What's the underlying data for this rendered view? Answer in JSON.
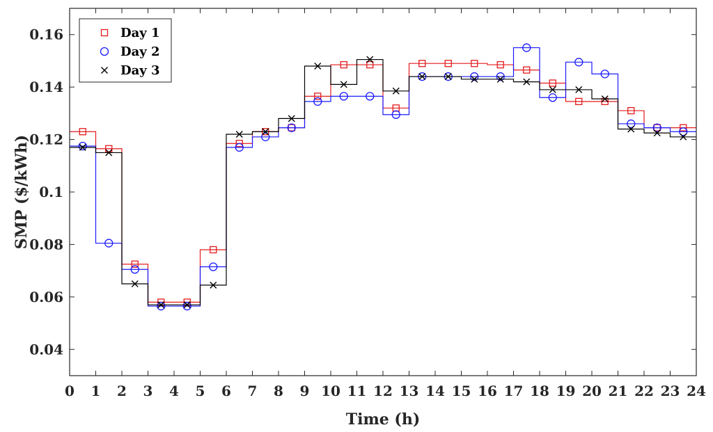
{
  "chart_data": {
    "type": "line",
    "step": true,
    "xlabel": "Time (h)",
    "ylabel": "SMP ($/kWh)",
    "xlim": [
      0,
      24
    ],
    "ylim": [
      0.03,
      0.17
    ],
    "xticks": [
      0,
      1,
      2,
      3,
      4,
      5,
      6,
      7,
      8,
      9,
      10,
      11,
      12,
      13,
      14,
      15,
      16,
      17,
      18,
      19,
      20,
      21,
      22,
      23,
      24
    ],
    "xtick_labels": [
      "0",
      "1",
      "2",
      "3",
      "4",
      "5",
      "6",
      "7",
      "8",
      "9",
      "10",
      "11",
      "12",
      "13",
      "14",
      "15",
      "16",
      "17",
      "18",
      "19",
      "20",
      "21",
      "22",
      "23",
      "24"
    ],
    "yticks": [
      0.04,
      0.06,
      0.08,
      0.1,
      0.12,
      0.14,
      0.16
    ],
    "ytick_labels": [
      "0.04",
      "0.06",
      "0.08",
      "0.1",
      "0.12",
      "0.14",
      "0.16"
    ],
    "grid": false,
    "legend_position": "top-left",
    "series": [
      {
        "name": "Day 1",
        "color": "#e41a1c",
        "marker": "square",
        "values": [
          0.123,
          0.1165,
          0.0725,
          0.058,
          0.058,
          0.078,
          0.1185,
          0.123,
          0.1245,
          0.1365,
          0.1485,
          0.1485,
          0.132,
          0.149,
          0.149,
          0.149,
          0.1485,
          0.1465,
          0.1415,
          0.1345,
          0.1345,
          0.131,
          0.1245,
          0.1245
        ]
      },
      {
        "name": "Day 2",
        "color": "#1a1aff",
        "marker": "circle",
        "values": [
          0.1175,
          0.0805,
          0.0705,
          0.0565,
          0.0565,
          0.0715,
          0.117,
          0.121,
          0.1245,
          0.1345,
          0.1365,
          0.1365,
          0.1295,
          0.144,
          0.144,
          0.144,
          0.144,
          0.155,
          0.136,
          0.1495,
          0.145,
          0.126,
          0.1245,
          0.123
        ]
      },
      {
        "name": "Day 3",
        "color": "#000000",
        "marker": "x",
        "values": [
          0.117,
          0.115,
          0.065,
          0.057,
          0.057,
          0.0645,
          0.122,
          0.123,
          0.128,
          0.148,
          0.141,
          0.1505,
          0.1385,
          0.144,
          0.144,
          0.143,
          0.143,
          0.142,
          0.139,
          0.139,
          0.1355,
          0.124,
          0.1225,
          0.121
        ]
      }
    ]
  }
}
